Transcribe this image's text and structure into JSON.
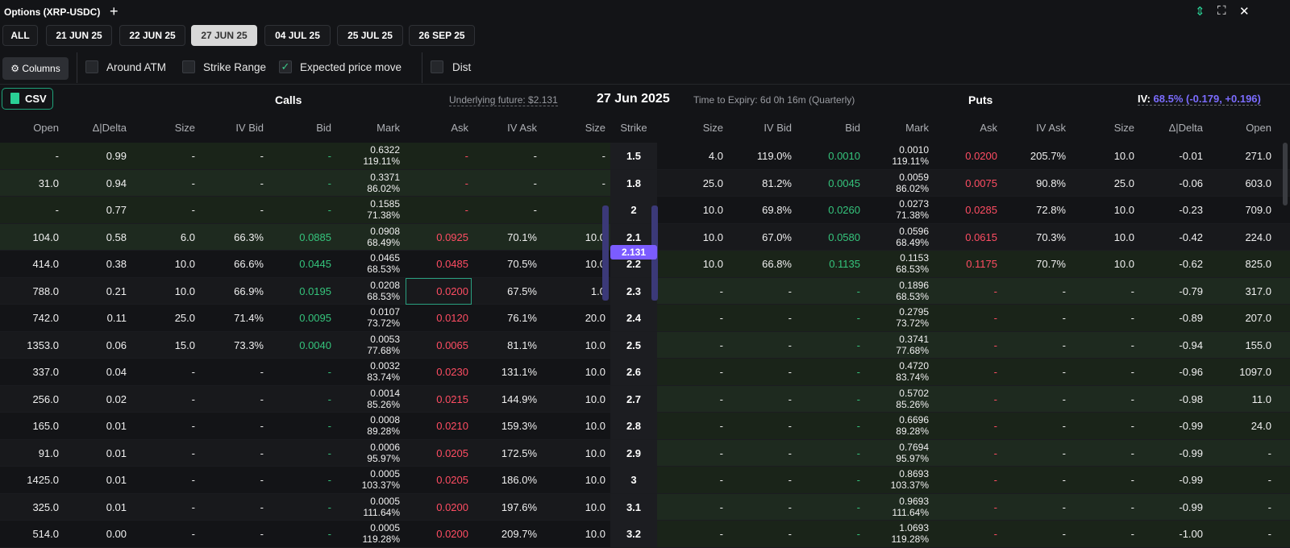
{
  "window": {
    "title": "Options (XRP-USDC)",
    "add_label": "+",
    "controls": [
      "⇕",
      "⛶",
      "✕"
    ]
  },
  "date_tabs": [
    "ALL",
    "21 JUN 25",
    "22 JUN 25",
    "27 JUN 25",
    "04 JUL 25",
    "25 JUL 25",
    "26 SEP 25"
  ],
  "active_tab": "27 JUN 25",
  "filters": {
    "columns_label": "⚙ Columns",
    "around_atm": "Around ATM",
    "strike_range": "Strike Range",
    "expected_price_move": "Expected price move",
    "dist": "Dist"
  },
  "info": {
    "csv_label": "CSV",
    "calls_label": "Calls",
    "underlying": "Underlying future: $2.131",
    "expiry_date": "27 Jun 2025",
    "time_to_expiry": "Time to Expiry: 6d 0h 16m (Quarterly)",
    "puts_label": "Puts",
    "iv_label": "IV:",
    "iv_value": "68.5% (-0.179, +0.196)",
    "atm_price": "2.131"
  },
  "columns": [
    "Open",
    "Δ|Delta",
    "Size",
    "IV Bid",
    "Bid",
    "Mark",
    "Ask",
    "IV Ask",
    "Size",
    "Strike",
    "Size",
    "IV Bid",
    "Bid",
    "Mark",
    "Ask",
    "IV Ask",
    "Size",
    "Δ|Delta",
    "Open"
  ],
  "colors": {
    "bid": "#35c47c",
    "ask": "#ff4d63",
    "accent": "#7b5cff",
    "csv_border": "#1fa37a"
  },
  "rows": [
    {
      "c": [
        "-",
        "0.99",
        "-",
        "-",
        "-",
        "0.6322|119.11%",
        "-",
        "-",
        "-"
      ],
      "strike": "1.5",
      "p": [
        "4.0",
        "119.0%",
        "0.0010",
        "0.0010|119.11%",
        "0.0200",
        "205.7%",
        "10.0",
        "-0.01",
        "271.0"
      ]
    },
    {
      "c": [
        "31.0",
        "0.94",
        "-",
        "-",
        "-",
        "0.3371|86.02%",
        "-",
        "-",
        "-"
      ],
      "strike": "1.8",
      "p": [
        "25.0",
        "81.2%",
        "0.0045",
        "0.0059|86.02%",
        "0.0075",
        "90.8%",
        "25.0",
        "-0.06",
        "603.0"
      ]
    },
    {
      "c": [
        "-",
        "0.77",
        "-",
        "-",
        "-",
        "0.1585|71.38%",
        "-",
        "-",
        "-"
      ],
      "strike": "2",
      "p": [
        "10.0",
        "69.8%",
        "0.0260",
        "0.0273|71.38%",
        "0.0285",
        "72.8%",
        "10.0",
        "-0.23",
        "709.0"
      ]
    },
    {
      "c": [
        "104.0",
        "0.58",
        "6.0",
        "66.3%",
        "0.0885",
        "0.0908|68.49%",
        "0.0925",
        "70.1%",
        "10.0"
      ],
      "strike": "2.1",
      "p": [
        "10.0",
        "67.0%",
        "0.0580",
        "0.0596|68.49%",
        "0.0615",
        "70.3%",
        "10.0",
        "-0.42",
        "224.0"
      ]
    },
    {
      "c": [
        "414.0",
        "0.38",
        "10.0",
        "66.6%",
        "0.0445",
        "0.0465|68.53%",
        "0.0485",
        "70.5%",
        "10.0"
      ],
      "strike": "2.2",
      "p": [
        "10.0",
        "66.8%",
        "0.1135",
        "0.1153|68.53%",
        "0.1175",
        "70.7%",
        "10.0",
        "-0.62",
        "825.0"
      ]
    },
    {
      "c": [
        "788.0",
        "0.21",
        "10.0",
        "66.9%",
        "0.0195",
        "0.0208|68.53%",
        "0.0200",
        "67.5%",
        "1.0"
      ],
      "strike": "2.3",
      "p": [
        "-",
        "-",
        "-",
        "0.1896|68.53%",
        "-",
        "-",
        "-",
        "-0.79",
        "317.0"
      ]
    },
    {
      "c": [
        "742.0",
        "0.11",
        "25.0",
        "71.4%",
        "0.0095",
        "0.0107|73.72%",
        "0.0120",
        "76.1%",
        "20.0"
      ],
      "strike": "2.4",
      "p": [
        "-",
        "-",
        "-",
        "0.2795|73.72%",
        "-",
        "-",
        "-",
        "-0.89",
        "207.0"
      ]
    },
    {
      "c": [
        "1353.0",
        "0.06",
        "15.0",
        "73.3%",
        "0.0040",
        "0.0053|77.68%",
        "0.0065",
        "81.1%",
        "10.0"
      ],
      "strike": "2.5",
      "p": [
        "-",
        "-",
        "-",
        "0.3741|77.68%",
        "-",
        "-",
        "-",
        "-0.94",
        "155.0"
      ]
    },
    {
      "c": [
        "337.0",
        "0.04",
        "-",
        "-",
        "-",
        "0.0032|83.74%",
        "0.0230",
        "131.1%",
        "10.0"
      ],
      "strike": "2.6",
      "p": [
        "-",
        "-",
        "-",
        "0.4720|83.74%",
        "-",
        "-",
        "-",
        "-0.96",
        "1097.0"
      ]
    },
    {
      "c": [
        "256.0",
        "0.02",
        "-",
        "-",
        "-",
        "0.0014|85.26%",
        "0.0215",
        "144.9%",
        "10.0"
      ],
      "strike": "2.7",
      "p": [
        "-",
        "-",
        "-",
        "0.5702|85.26%",
        "-",
        "-",
        "-",
        "-0.98",
        "11.0"
      ]
    },
    {
      "c": [
        "165.0",
        "0.01",
        "-",
        "-",
        "-",
        "0.0008|89.28%",
        "0.0210",
        "159.3%",
        "10.0"
      ],
      "strike": "2.8",
      "p": [
        "-",
        "-",
        "-",
        "0.6696|89.28%",
        "-",
        "-",
        "-",
        "-0.99",
        "24.0"
      ]
    },
    {
      "c": [
        "91.0",
        "0.01",
        "-",
        "-",
        "-",
        "0.0006|95.97%",
        "0.0205",
        "172.5%",
        "10.0"
      ],
      "strike": "2.9",
      "p": [
        "-",
        "-",
        "-",
        "0.7694|95.97%",
        "-",
        "-",
        "-",
        "-0.99",
        "-"
      ]
    },
    {
      "c": [
        "1425.0",
        "0.01",
        "-",
        "-",
        "-",
        "0.0005|103.37%",
        "0.0205",
        "186.0%",
        "10.0"
      ],
      "strike": "3",
      "p": [
        "-",
        "-",
        "-",
        "0.8693|103.37%",
        "-",
        "-",
        "-",
        "-0.99",
        "-"
      ]
    },
    {
      "c": [
        "325.0",
        "0.01",
        "-",
        "-",
        "-",
        "0.0005|111.64%",
        "0.0200",
        "197.6%",
        "10.0"
      ],
      "strike": "3.1",
      "p": [
        "-",
        "-",
        "-",
        "0.9693|111.64%",
        "-",
        "-",
        "-",
        "-0.99",
        "-"
      ]
    },
    {
      "c": [
        "514.0",
        "0.00",
        "-",
        "-",
        "-",
        "0.0005|119.28%",
        "0.0200",
        "209.7%",
        "10.0"
      ],
      "strike": "3.2",
      "p": [
        "-",
        "-",
        "-",
        "1.0693|119.28%",
        "-",
        "-",
        "-",
        "-1.00",
        "-"
      ]
    }
  ]
}
